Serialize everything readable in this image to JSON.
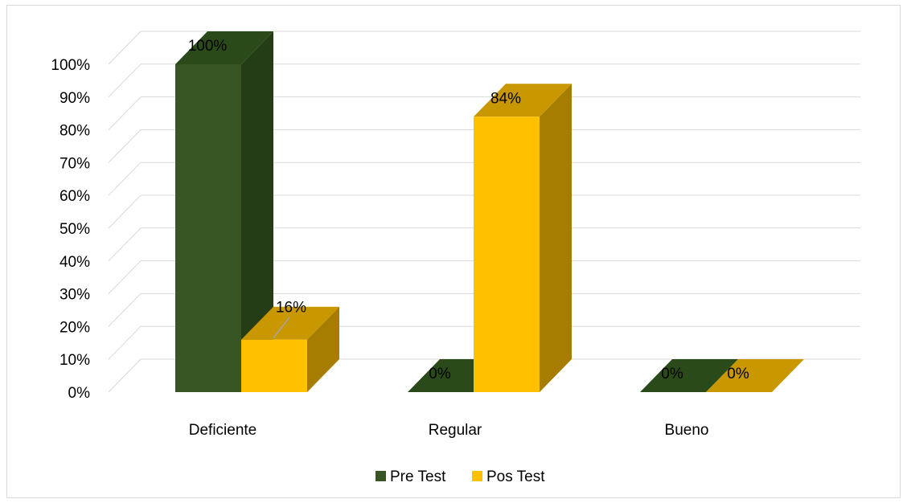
{
  "chart_data": {
    "type": "bar",
    "categories": [
      "Deficiente",
      "Regular",
      "Bueno"
    ],
    "series": [
      {
        "name": "Pre Test",
        "values": [
          100,
          0,
          0
        ]
      },
      {
        "name": "Pos Test",
        "values": [
          16,
          84,
          0
        ]
      }
    ],
    "data_labels": [
      [
        "100%",
        "0%",
        "0%"
      ],
      [
        "16%",
        "84%",
        "0%"
      ]
    ],
    "y_ticks": [
      "0%",
      "10%",
      "20%",
      "30%",
      "40%",
      "50%",
      "60%",
      "70%",
      "80%",
      "90%",
      "100%"
    ],
    "ylim": [
      0,
      100
    ],
    "grid": true,
    "legend_position": "bottom",
    "colors": {
      "pre_front": "#375623",
      "pre_side": "#253d17",
      "pre_top": "#2b4a1a",
      "pos_front": "#ffc000",
      "pos_side": "#a67d00",
      "pos_top": "#c99700",
      "grid": "#d9d9d9"
    }
  }
}
